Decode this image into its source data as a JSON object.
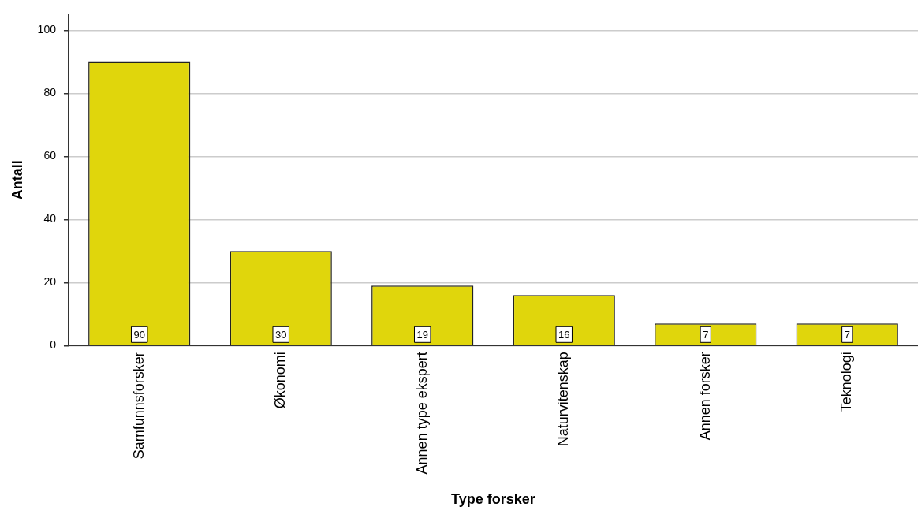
{
  "chart_data": {
    "type": "bar",
    "xlabel": "Type forsker",
    "ylabel": "Antall",
    "categories": [
      "Samfunnsforsker",
      "Økonomi",
      "Annen type ekspert",
      "Naturvitenskap",
      "Annen forsker",
      "Teknologi"
    ],
    "values": [
      90,
      30,
      19,
      16,
      7,
      7
    ],
    "color": "#e0d60c",
    "ylim": [
      0,
      105
    ],
    "yticks": [
      0,
      20,
      40,
      60,
      80,
      100
    ],
    "grid": "y",
    "data_labels": true,
    "legend": false
  }
}
